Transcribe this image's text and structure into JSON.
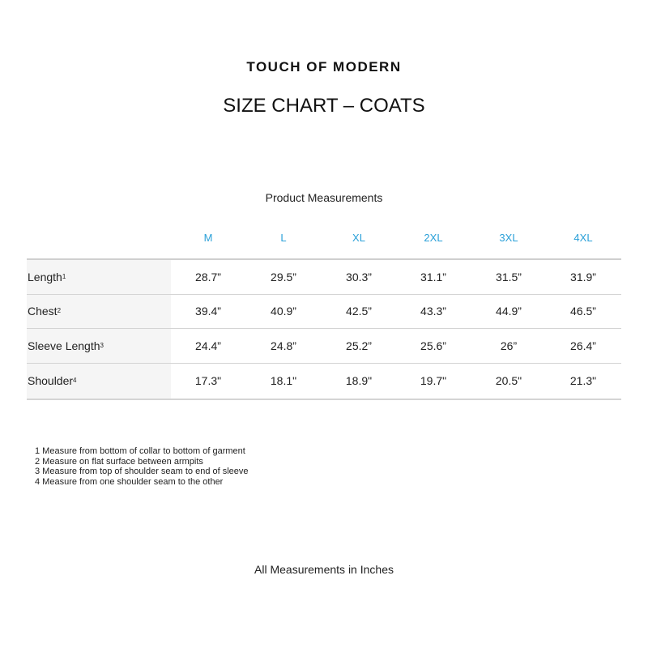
{
  "brand": "TOUCH OF MODERN",
  "title": "SIZE CHART – COATS",
  "subtitle": "Product Measurements",
  "colors": {
    "size_header": "#2aa0d8",
    "label_column_bg": "#f5f5f5"
  },
  "table": {
    "sizes": [
      "M",
      "L",
      "XL",
      "2XL",
      "3XL",
      "4XL"
    ],
    "rows": [
      {
        "label": "Length",
        "note": "1",
        "values": [
          "28.7”",
          "29.5”",
          "30.3”",
          "31.1”",
          "31.5”",
          "31.9”"
        ]
      },
      {
        "label": "Chest",
        "note": "2",
        "values": [
          "39.4”",
          "40.9”",
          "42.5”",
          "43.3”",
          "44.9”",
          "46.5”"
        ]
      },
      {
        "label": "Sleeve Length",
        "note": "3",
        "values": [
          "24.4”",
          "24.8”",
          "25.2”",
          "25.6”",
          "26”",
          "26.4”"
        ]
      },
      {
        "label": "Shoulder",
        "note": "4",
        "values": [
          "17.3\"",
          "18.1\"",
          "18.9\"",
          "19.7\"",
          "20.5\"",
          "21.3\""
        ]
      }
    ]
  },
  "notes": [
    "1 Measure from bottom of collar to bottom of garment",
    "2 Measure on flat surface between armpits",
    "3 Measure from top of shoulder seam to end of sleeve",
    "4 Measure from one shoulder seam to the other"
  ],
  "footer": "All Measurements in Inches"
}
